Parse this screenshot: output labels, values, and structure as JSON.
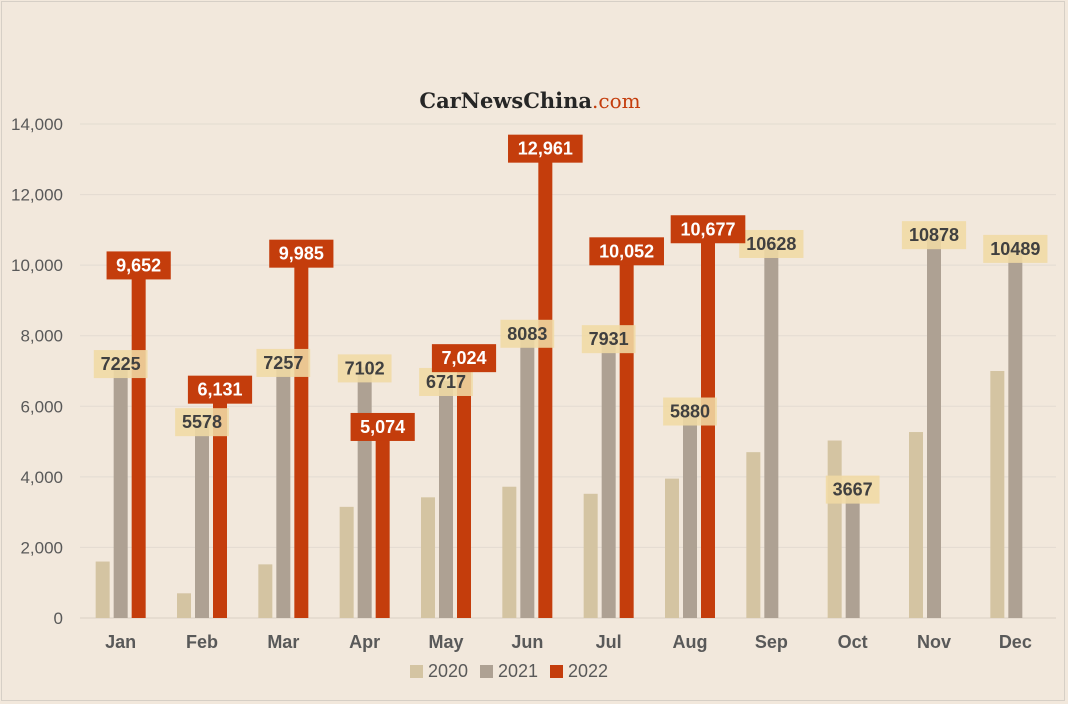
{
  "brand": {
    "name": "CarNewsChina",
    "suffix": ".com"
  },
  "chart_data": {
    "type": "bar",
    "title": "",
    "xlabel": "",
    "ylabel": "",
    "ylim": [
      0,
      14000
    ],
    "yticks": [
      0,
      2000,
      4000,
      6000,
      8000,
      10000,
      12000,
      14000
    ],
    "ytick_labels": [
      "0",
      "2,000",
      "4,000",
      "6,000",
      "8,000",
      "10,000",
      "12,000",
      "14,000"
    ],
    "grid": true,
    "legend_position": "bottom",
    "categories": [
      "Jan",
      "Feb",
      "Mar",
      "Apr",
      "May",
      "Jun",
      "Jul",
      "Aug",
      "Sep",
      "Oct",
      "Nov",
      "Dec"
    ],
    "series": [
      {
        "name": "2020",
        "color": "#d4c4a2",
        "values": [
          1600,
          700,
          1520,
          3150,
          3420,
          3720,
          3520,
          3950,
          4700,
          5030,
          5270,
          7000
        ],
        "labels": [
          null,
          null,
          null,
          null,
          null,
          null,
          null,
          null,
          null,
          null,
          null,
          null
        ]
      },
      {
        "name": "2021",
        "color": "#aea193",
        "values": [
          7225,
          5578,
          7257,
          7102,
          6717,
          8083,
          7931,
          5880,
          10628,
          3667,
          10878,
          10489
        ],
        "labels": [
          "7225",
          "5578",
          "7257",
          "7102",
          "6717",
          "8083",
          "7931",
          "5880",
          "10628",
          "3667",
          "10878",
          "10489"
        ]
      },
      {
        "name": "2022",
        "color": "#c43d0c",
        "values": [
          9652,
          6131,
          9985,
          5074,
          7024,
          12961,
          10052,
          10677,
          null,
          null,
          null,
          null
        ],
        "labels": [
          "9,652",
          "6,131",
          "9,985",
          "5,074",
          "7,024",
          "12,961",
          "10,052",
          "10,677",
          null,
          null,
          null,
          null
        ]
      }
    ]
  },
  "colors": {
    "background": "#f2e8dc",
    "grid": "#e3dbd1",
    "axis_text": "#595959",
    "label_2021_bg": "#f0d9a4",
    "label_2021_text": "#404040",
    "label_2022_bg": "#c43d0c",
    "label_2022_text": "#ffffff",
    "brand_text": "#262626",
    "brand_accent": "#c43d0c"
  }
}
